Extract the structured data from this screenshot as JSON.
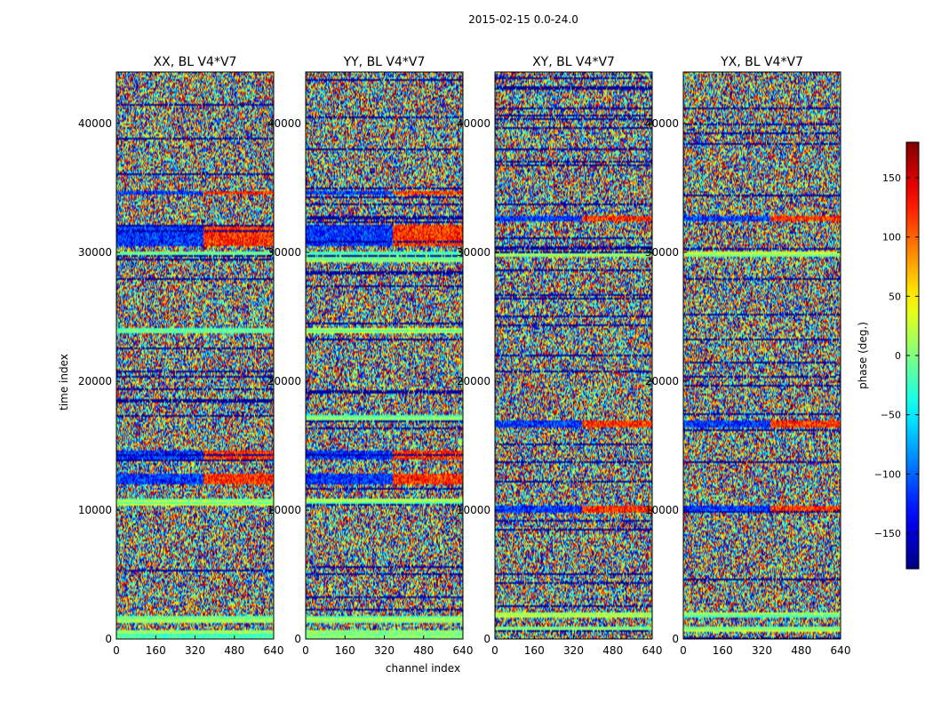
{
  "figure": {
    "suptitle": "2015-02-15 0.0-24.0"
  },
  "chart_data": [
    {
      "type": "heatmap",
      "title": "XX, BL V4*V7",
      "xlabel": "",
      "ylabel": "time index",
      "xlim": [
        0,
        640
      ],
      "ylim": [
        0,
        44000
      ],
      "xticks": [
        0,
        160,
        320,
        480,
        640
      ],
      "yticks": [
        0,
        10000,
        20000,
        30000,
        40000
      ],
      "band_ranges": [
        [
          0,
          700
        ],
        [
          1300,
          1800
        ],
        [
          10300,
          10900
        ],
        [
          23700,
          24200
        ],
        [
          29600,
          30100
        ]
      ],
      "disturbed_ranges": [
        [
          12000,
          12800
        ],
        [
          14000,
          14600
        ],
        [
          30500,
          32200
        ],
        [
          34500,
          34800
        ]
      ]
    },
    {
      "type": "heatmap",
      "title": "YY, BL V4*V7",
      "xlabel": "channel index",
      "ylabel": "",
      "xlim": [
        0,
        640
      ],
      "ylim": [
        0,
        44000
      ],
      "xticks": [
        0,
        160,
        320,
        480,
        640
      ],
      "yticks": [
        0,
        10000,
        20000,
        30000,
        40000
      ],
      "band_ranges": [
        [
          0,
          700
        ],
        [
          1300,
          1800
        ],
        [
          10300,
          10900
        ],
        [
          16800,
          17400
        ],
        [
          23700,
          24200
        ],
        [
          29300,
          30100
        ]
      ],
      "disturbed_ranges": [
        [
          12000,
          12800
        ],
        [
          14000,
          14600
        ],
        [
          30500,
          32200
        ],
        [
          34500,
          34800
        ]
      ]
    },
    {
      "type": "heatmap",
      "title": "XY, BL V4*V7",
      "xlabel": "",
      "ylabel": "",
      "xlim": [
        0,
        640
      ],
      "ylim": [
        0,
        44000
      ],
      "xticks": [
        0,
        160,
        320,
        480,
        640
      ],
      "yticks": [
        0,
        10000,
        20000,
        30000,
        40000
      ],
      "band_ranges": [
        [
          600,
          900
        ],
        [
          1700,
          2100
        ],
        [
          29600,
          30000
        ]
      ],
      "disturbed_ranges": [
        [
          9800,
          10400
        ],
        [
          16400,
          17000
        ],
        [
          32400,
          32800
        ]
      ]
    },
    {
      "type": "heatmap",
      "title": "YX, BL V4*V7",
      "xlabel": "",
      "ylabel": "",
      "xlim": [
        0,
        640
      ],
      "ylim": [
        0,
        44000
      ],
      "xticks": [
        0,
        160,
        320,
        480,
        640
      ],
      "yticks": [
        0,
        10000,
        20000,
        30000,
        40000
      ],
      "band_ranges": [
        [
          600,
          900
        ],
        [
          1700,
          2100
        ],
        [
          29600,
          30000
        ]
      ],
      "disturbed_ranges": [
        [
          9800,
          10400
        ],
        [
          16400,
          17000
        ],
        [
          32400,
          32800
        ]
      ]
    }
  ],
  "colorbar": {
    "label": "phase (deg.)",
    "range": [
      -180,
      180
    ],
    "ticks": [
      -150,
      -100,
      -50,
      0,
      50,
      100,
      150
    ],
    "tick_labels": [
      "−150",
      "−100",
      "−50",
      "0",
      "50",
      "100",
      "150"
    ],
    "colormap": "jet"
  }
}
